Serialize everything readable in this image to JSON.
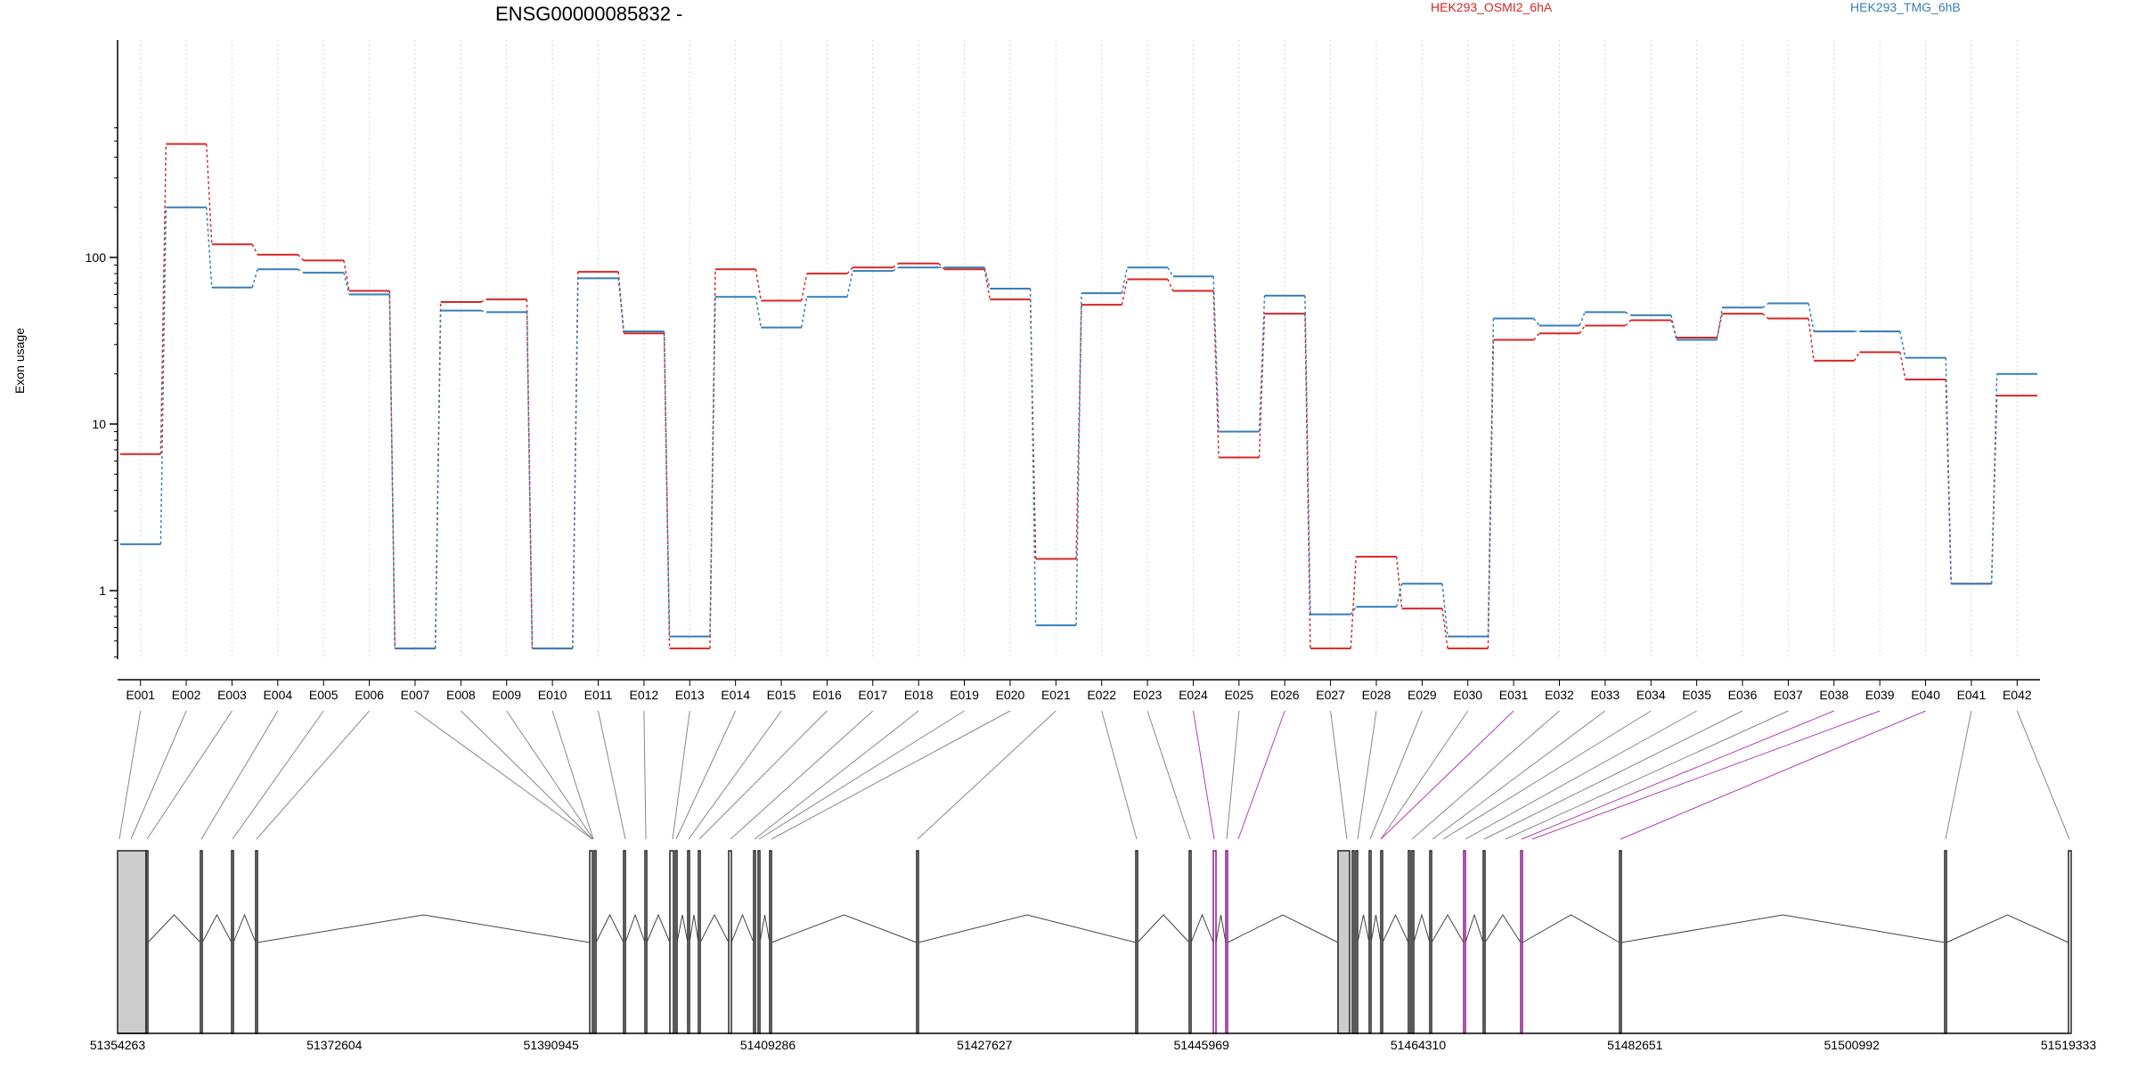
{
  "chart_data": {
    "type": "line",
    "title": "ENSG00000085832 -",
    "ylabel": "Exon usage",
    "yscale": "log",
    "ylim": [
      0.4,
      650
    ],
    "yticks": [
      1,
      10,
      100
    ],
    "ytick_labels": [
      "1",
      "10",
      "100"
    ],
    "grid": "vertical-dotted",
    "legend": "top",
    "categories": [
      "E001",
      "E002",
      "E003",
      "E004",
      "E005",
      "E006",
      "E007",
      "E008",
      "E009",
      "E010",
      "E011",
      "E012",
      "E013",
      "E014",
      "E015",
      "E016",
      "E017",
      "E018",
      "E019",
      "E020",
      "E021",
      "E022",
      "E023",
      "E024",
      "E025",
      "E026",
      "E027",
      "E028",
      "E029",
      "E030",
      "E031",
      "E032",
      "E033",
      "E034",
      "E035",
      "E036",
      "E037",
      "E038",
      "E039",
      "E040",
      "E041",
      "E042"
    ],
    "series": [
      {
        "name": "HEK293_OSMI2_6hA",
        "color": "#d62728",
        "values": [
          6.6,
          480,
          120,
          104,
          96,
          63,
          0.45,
          54,
          56,
          0.45,
          82,
          35,
          0.45,
          85,
          55,
          80,
          87,
          92,
          85,
          56,
          1.55,
          52,
          74,
          63,
          6.3,
          46,
          0.45,
          1.6,
          0.78,
          0.45,
          32,
          35,
          39,
          42,
          33,
          46,
          43,
          24,
          27,
          18.5,
          1.1,
          14.8
        ]
      },
      {
        "name": "HEK293_TMG_6hB",
        "color": "#377eb8",
        "values": [
          1.9,
          200,
          66,
          85,
          81,
          60,
          0.45,
          48,
          47,
          0.45,
          75,
          36,
          0.53,
          58,
          38,
          58,
          83,
          87,
          87,
          65,
          0.62,
          61,
          87,
          77,
          9.0,
          59,
          0.72,
          0.8,
          1.1,
          0.53,
          43,
          39,
          47,
          45,
          32,
          50,
          53,
          36,
          36,
          25,
          1.1,
          20
        ]
      }
    ],
    "genomic_axis": {
      "tick_labels": [
        "51354263",
        "51372604",
        "51390945",
        "51409286",
        "51427627",
        "51445969",
        "51464310",
        "51482651",
        "51500992",
        "51519333"
      ]
    }
  }
}
